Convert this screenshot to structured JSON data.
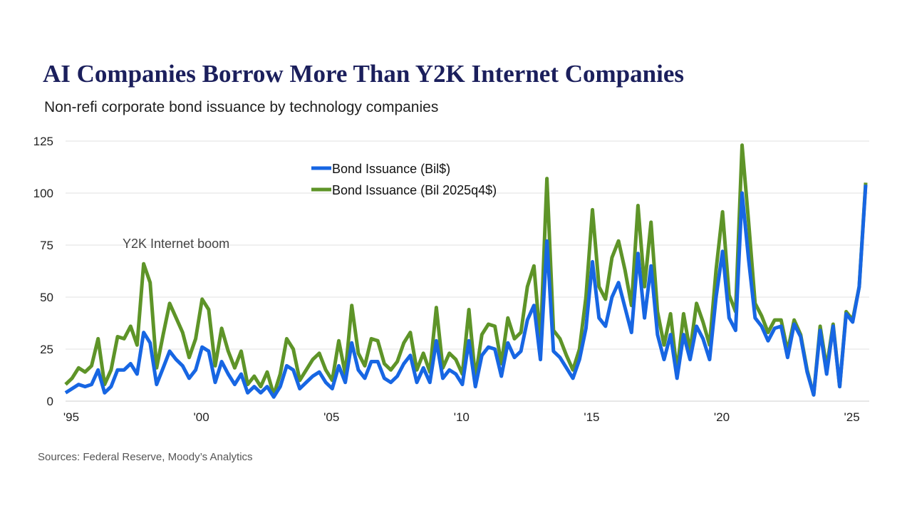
{
  "title": "AI Companies Borrow More Than Y2K Internet Companies",
  "subtitle": "Non-refi corporate bond issuance by technology companies",
  "sources": "Sources: Federal Reserve, Moody’s Analytics",
  "colors": {
    "blue": "#1766e3",
    "green": "#5e9428",
    "grid": "#e2e2e2"
  },
  "chart_data": {
    "type": "line",
    "title": "AI Companies Borrow More Than Y2K Internet Companies",
    "xlabel": "",
    "ylabel": "",
    "x_start": "1995Q1",
    "x_end": "2025Q4",
    "frequency": "quarterly",
    "xlim": [
      1995,
      2025.75
    ],
    "ylim": [
      0,
      125
    ],
    "yticks": [
      0,
      25,
      50,
      75,
      100,
      125
    ],
    "xticks": [
      {
        "value": 1995,
        "label": "'95"
      },
      {
        "value": 2000,
        "label": "'00"
      },
      {
        "value": 2005,
        "label": "'05"
      },
      {
        "value": 2010,
        "label": "'10"
      },
      {
        "value": 2015,
        "label": "'15"
      },
      {
        "value": 2020,
        "label": "'20"
      },
      {
        "value": 2025,
        "label": "'25"
      }
    ],
    "grid": true,
    "legend_position": "top-center",
    "annotations": [
      {
        "text": "Y2K Internet boom",
        "x": 1997.25,
        "y": 75
      }
    ],
    "series": [
      {
        "name": "Bond Issuance (Bil$)",
        "color": "#1766e3",
        "values": [
          4,
          6,
          8,
          7,
          8,
          15,
          4,
          7,
          15,
          15,
          18,
          13,
          33,
          28,
          8,
          16,
          24,
          20,
          17,
          11,
          15,
          26,
          24,
          9,
          19,
          13,
          8,
          13,
          4,
          7,
          4,
          7,
          2,
          7,
          17,
          15,
          6,
          9,
          12,
          14,
          9,
          6,
          17,
          9,
          28,
          15,
          11,
          19,
          19,
          11,
          9,
          12,
          18,
          22,
          9,
          16,
          9,
          29,
          11,
          15,
          13,
          8,
          29,
          7,
          22,
          26,
          25,
          12,
          28,
          21,
          24,
          39,
          46,
          20,
          77,
          24,
          21,
          16,
          11,
          20,
          35,
          67,
          40,
          36,
          50,
          57,
          45,
          33,
          71,
          40,
          65,
          32,
          20,
          32,
          11,
          32,
          20,
          36,
          30,
          20,
          50,
          72,
          40,
          34,
          100,
          68,
          40,
          36,
          29,
          35,
          36,
          21,
          37,
          31,
          14,
          3,
          34,
          13,
          36,
          7,
          42,
          38,
          55,
          104
        ]
      },
      {
        "name": "Bond Issuance (Bil 2025q4$)",
        "color": "#5e9428",
        "values": [
          8,
          11,
          16,
          14,
          17,
          30,
          8,
          15,
          31,
          30,
          36,
          27,
          66,
          57,
          16,
          32,
          47,
          40,
          33,
          21,
          30,
          49,
          44,
          17,
          35,
          24,
          16,
          24,
          8,
          12,
          7,
          14,
          3,
          13,
          30,
          25,
          10,
          15,
          20,
          23,
          15,
          10,
          29,
          13,
          46,
          23,
          17,
          30,
          29,
          18,
          15,
          19,
          28,
          33,
          15,
          23,
          14,
          45,
          16,
          23,
          20,
          13,
          44,
          11,
          32,
          37,
          36,
          18,
          40,
          30,
          33,
          55,
          65,
          28,
          107,
          34,
          30,
          22,
          15,
          25,
          50,
          92,
          55,
          49,
          69,
          77,
          63,
          46,
          94,
          55,
          86,
          43,
          27,
          42,
          14,
          42,
          24,
          47,
          38,
          27,
          63,
          91,
          51,
          43,
          123,
          86,
          47,
          41,
          33,
          39,
          39,
          24,
          39,
          32,
          15,
          3,
          36,
          16,
          37,
          7,
          43,
          39,
          55,
          105
        ]
      }
    ]
  }
}
